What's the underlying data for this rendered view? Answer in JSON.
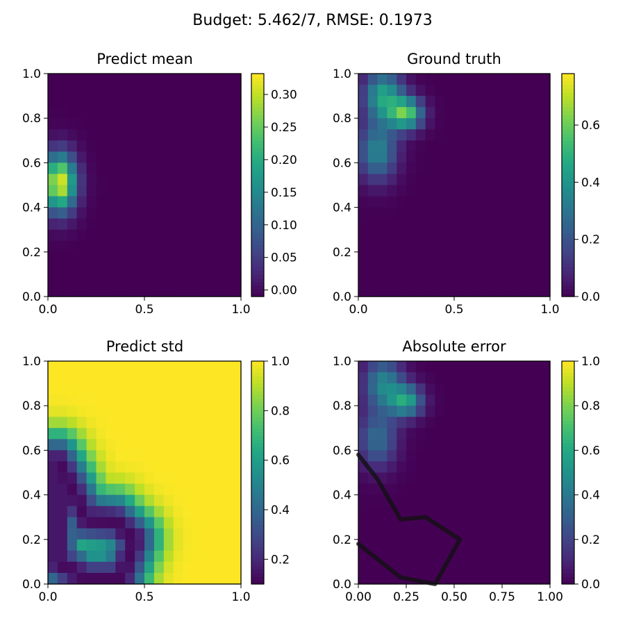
{
  "suptitle": "Budget: 5.462/7,  RMSE: 0.1973",
  "chart_data": [
    {
      "type": "heatmap",
      "title": "Predict mean",
      "xlim": [
        0,
        1
      ],
      "ylim": [
        0,
        1
      ],
      "xticks": [
        {
          "v": 0,
          "label": "0.0"
        },
        {
          "v": 0.5,
          "label": "0.5"
        },
        {
          "v": 1,
          "label": "1.0"
        }
      ],
      "yticks": [
        {
          "v": 0,
          "label": "0.0"
        },
        {
          "v": 0.2,
          "label": "0.2"
        },
        {
          "v": 0.4,
          "label": "0.4"
        },
        {
          "v": 0.6,
          "label": "0.6"
        },
        {
          "v": 0.8,
          "label": "0.8"
        },
        {
          "v": 1,
          "label": "1.0"
        }
      ],
      "colorbar": {
        "range": [
          -0.01,
          0.332
        ],
        "ticks": [
          {
            "v": 0,
            "label": "0.00"
          },
          {
            "v": 0.05,
            "label": "0.05"
          },
          {
            "v": 0.1,
            "label": "0.10"
          },
          {
            "v": 0.15,
            "label": "0.15"
          },
          {
            "v": 0.2,
            "label": "0.20"
          },
          {
            "v": 0.25,
            "label": "0.25"
          },
          {
            "v": 0.3,
            "label": "0.30"
          }
        ]
      },
      "grid_shape": [
        20,
        20
      ],
      "sources": [
        {
          "x": 0.06,
          "y": 0.51,
          "sx": 0.06,
          "sy": 0.09,
          "amp": 0.33
        }
      ],
      "floor": -0.01,
      "colormap": "viridis",
      "path": []
    },
    {
      "type": "heatmap",
      "title": "Ground truth",
      "xlim": [
        0,
        1
      ],
      "ylim": [
        0,
        1
      ],
      "xticks": [
        {
          "v": 0,
          "label": "0.0"
        },
        {
          "v": 0.5,
          "label": "0.5"
        },
        {
          "v": 1,
          "label": "1.0"
        }
      ],
      "yticks": [
        {
          "v": 0,
          "label": "0.0"
        },
        {
          "v": 0.2,
          "label": "0.2"
        },
        {
          "v": 0.4,
          "label": "0.4"
        },
        {
          "v": 0.6,
          "label": "0.6"
        },
        {
          "v": 0.8,
          "label": "0.8"
        },
        {
          "v": 1,
          "label": "1.0"
        }
      ],
      "colorbar": {
        "range": [
          0,
          0.78
        ],
        "ticks": [
          {
            "v": 0,
            "label": "0.0"
          },
          {
            "v": 0.2,
            "label": "0.2"
          },
          {
            "v": 0.4,
            "label": "0.4"
          },
          {
            "v": 0.6,
            "label": "0.6"
          }
        ]
      },
      "grid_shape": [
        20,
        20
      ],
      "sources": [
        {
          "x": 0.25,
          "y": 0.82,
          "sx": 0.06,
          "sy": 0.05,
          "amp": 0.55
        },
        {
          "x": 0.13,
          "y": 0.9,
          "sx": 0.07,
          "sy": 0.08,
          "amp": 0.45
        },
        {
          "x": 0.1,
          "y": 0.65,
          "sx": 0.07,
          "sy": 0.09,
          "amp": 0.35
        }
      ],
      "floor": 0,
      "colormap": "viridis",
      "path": []
    },
    {
      "type": "heatmap",
      "title": "Predict std",
      "xlim": [
        0,
        1
      ],
      "ylim": [
        0,
        1
      ],
      "xticks": [
        {
          "v": 0,
          "label": "0.0"
        },
        {
          "v": 0.5,
          "label": "0.5"
        },
        {
          "v": 1,
          "label": "1.0"
        }
      ],
      "yticks": [
        {
          "v": 0,
          "label": "0.0"
        },
        {
          "v": 0.2,
          "label": "0.2"
        },
        {
          "v": 0.4,
          "label": "0.4"
        },
        {
          "v": 0.6,
          "label": "0.6"
        },
        {
          "v": 0.8,
          "label": "0.8"
        },
        {
          "v": 1,
          "label": "1.0"
        }
      ],
      "colorbar": {
        "range": [
          0.1,
          1.0
        ],
        "ticks": [
          {
            "v": 0.2,
            "label": "0.2"
          },
          {
            "v": 0.4,
            "label": "0.4"
          },
          {
            "v": 0.6,
            "label": "0.6"
          },
          {
            "v": 0.8,
            "label": "0.8"
          },
          {
            "v": 1.0,
            "label": "1.0"
          }
        ]
      },
      "grid_shape": [
        20,
        20
      ],
      "std_path": [
        [
          0.05,
          0.55
        ],
        [
          0.1,
          0.47
        ],
        [
          0.2,
          0.29
        ],
        [
          0.35,
          0.28
        ],
        [
          0.45,
          0.2
        ],
        [
          0.38,
          0.02
        ],
        [
          0.2,
          0.02
        ],
        [
          0.05,
          0.1
        ],
        [
          0.05,
          0.55
        ]
      ],
      "std_sigma": 0.09,
      "std_floor": 0.12,
      "colormap": "viridis",
      "path": []
    },
    {
      "type": "heatmap",
      "title": "Absolute error",
      "xlim": [
        0,
        1
      ],
      "ylim": [
        0,
        1
      ],
      "xticks": [
        {
          "v": 0,
          "label": "0.00"
        },
        {
          "v": 0.25,
          "label": "0.25"
        },
        {
          "v": 0.5,
          "label": "0.50"
        },
        {
          "v": 0.75,
          "label": "0.75"
        },
        {
          "v": 1,
          "label": "1.00"
        }
      ],
      "yticks": [
        {
          "v": 0,
          "label": "0.0"
        },
        {
          "v": 0.2,
          "label": "0.2"
        },
        {
          "v": 0.4,
          "label": "0.4"
        },
        {
          "v": 0.6,
          "label": "0.6"
        },
        {
          "v": 0.8,
          "label": "0.8"
        },
        {
          "v": 1,
          "label": "1.0"
        }
      ],
      "colorbar": {
        "range": [
          0,
          1.0
        ],
        "ticks": [
          {
            "v": 0,
            "label": "0.0"
          },
          {
            "v": 0.2,
            "label": "0.2"
          },
          {
            "v": 0.4,
            "label": "0.4"
          },
          {
            "v": 0.6,
            "label": "0.6"
          },
          {
            "v": 0.8,
            "label": "0.8"
          },
          {
            "v": 1.0,
            "label": "1.0"
          }
        ]
      },
      "grid_shape": [
        20,
        20
      ],
      "sources": [
        {
          "x": 0.25,
          "y": 0.82,
          "sx": 0.06,
          "sy": 0.05,
          "amp": 0.55
        },
        {
          "x": 0.13,
          "y": 0.9,
          "sx": 0.07,
          "sy": 0.08,
          "amp": 0.45
        },
        {
          "x": 0.1,
          "y": 0.65,
          "sx": 0.07,
          "sy": 0.09,
          "amp": 0.35
        }
      ],
      "floor": 0,
      "colormap": "viridis",
      "path_color": "#111111",
      "path": [
        [
          0.0,
          0.58
        ],
        [
          0.1,
          0.47
        ],
        [
          0.22,
          0.29
        ],
        [
          0.35,
          0.3
        ],
        [
          0.53,
          0.2
        ],
        [
          0.4,
          0.0
        ],
        [
          0.22,
          0.03
        ],
        [
          0.0,
          0.18
        ]
      ]
    }
  ]
}
